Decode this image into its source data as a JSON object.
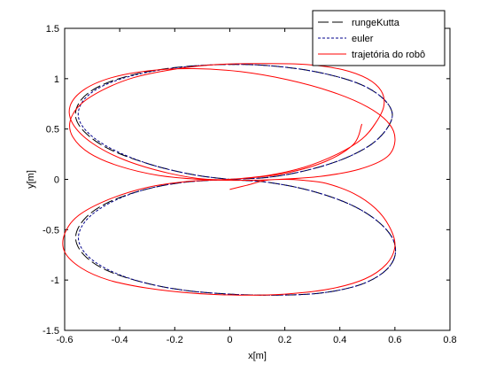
{
  "chart_data": {
    "type": "line",
    "title": "",
    "xlabel": "x[m]",
    "ylabel": "y[m]",
    "xlim": [
      -0.6,
      0.8
    ],
    "ylim": [
      -1.5,
      1.5
    ],
    "xticks": [
      -0.6,
      -0.4,
      -0.2,
      0,
      0.2,
      0.4,
      0.6,
      0.8
    ],
    "xtick_labels": [
      "-0.6",
      "-0.4",
      "-0.2",
      "0",
      "0.2",
      "0.4",
      "0.6",
      "0.8"
    ],
    "yticks": [
      -1.5,
      -1,
      -0.5,
      0,
      0.5,
      1,
      1.5
    ],
    "ytick_labels": [
      "-1.5",
      "-1",
      "-0.5",
      "0",
      "0.5",
      "1",
      "1.5"
    ],
    "grid": false,
    "legend_position": "top-right",
    "series": [
      {
        "name": "rungeKutta",
        "style": "dashed-long",
        "color": "#000000",
        "x": [
          0.0,
          0.14,
          0.28,
          0.41,
          0.51,
          0.57,
          0.59,
          0.55,
          0.46,
          0.31,
          0.14,
          -0.03,
          -0.2,
          -0.35,
          -0.47,
          -0.54,
          -0.56,
          -0.52,
          -0.43,
          -0.29,
          -0.14,
          0.0,
          0.14,
          0.29,
          0.43,
          0.53,
          0.59,
          0.6,
          0.56,
          0.47,
          0.33,
          0.17,
          0.0,
          -0.17,
          -0.32,
          -0.45,
          -0.53,
          -0.56,
          -0.53,
          -0.45,
          -0.32,
          -0.17,
          0.0
        ],
        "y": [
          0.0,
          0.02,
          0.09,
          0.2,
          0.34,
          0.5,
          0.66,
          0.82,
          0.96,
          1.07,
          1.13,
          1.14,
          1.11,
          1.04,
          0.93,
          0.79,
          0.62,
          0.45,
          0.29,
          0.15,
          0.05,
          0.0,
          -0.03,
          -0.11,
          -0.24,
          -0.4,
          -0.58,
          -0.76,
          -0.92,
          -1.05,
          -1.13,
          -1.15,
          -1.14,
          -1.1,
          -1.02,
          -0.9,
          -0.75,
          -0.58,
          -0.4,
          -0.24,
          -0.11,
          -0.03,
          0.0
        ]
      },
      {
        "name": "euler",
        "style": "dotted",
        "color": "#00008b",
        "x": [
          0.0,
          0.14,
          0.28,
          0.41,
          0.51,
          0.57,
          0.59,
          0.55,
          0.46,
          0.31,
          0.14,
          -0.03,
          -0.19,
          -0.34,
          -0.46,
          -0.53,
          -0.55,
          -0.51,
          -0.42,
          -0.29,
          -0.14,
          0.0,
          0.14,
          0.29,
          0.43,
          0.53,
          0.59,
          0.6,
          0.56,
          0.47,
          0.33,
          0.17,
          0.0,
          -0.17,
          -0.32,
          -0.44,
          -0.52,
          -0.55,
          -0.52,
          -0.44,
          -0.32,
          -0.17,
          0.0
        ],
        "y": [
          0.0,
          0.02,
          0.09,
          0.2,
          0.34,
          0.5,
          0.66,
          0.82,
          0.96,
          1.07,
          1.13,
          1.14,
          1.11,
          1.04,
          0.93,
          0.79,
          0.62,
          0.45,
          0.29,
          0.15,
          0.05,
          0.0,
          -0.03,
          -0.11,
          -0.24,
          -0.4,
          -0.58,
          -0.76,
          -0.92,
          -1.05,
          -1.13,
          -1.15,
          -1.14,
          -1.1,
          -1.02,
          -0.9,
          -0.75,
          -0.58,
          -0.4,
          -0.24,
          -0.11,
          -0.03,
          0.0
        ]
      },
      {
        "name": "trajetória do robô",
        "style": "solid",
        "color": "#ff0000",
        "x": [
          0.0,
          0.06,
          0.13,
          0.2,
          0.27,
          0.35,
          0.45,
          0.53,
          0.58,
          0.6,
          0.57,
          0.49,
          0.36,
          0.2,
          0.03,
          -0.14,
          -0.3,
          -0.44,
          -0.54,
          -0.6,
          -0.6,
          -0.55,
          -0.44,
          -0.3,
          -0.15,
          0.0,
          0.14,
          0.27,
          0.39,
          0.48,
          0.53,
          0.56,
          0.55,
          0.5,
          0.41,
          0.28,
          0.12,
          -0.05,
          -0.21,
          -0.35,
          -0.46,
          -0.54,
          -0.58,
          -0.57,
          -0.51,
          -0.4,
          -0.26,
          -0.11,
          0.03,
          0.18,
          0.33,
          0.47,
          0.57,
          0.6,
          0.58,
          0.5,
          0.37,
          0.21,
          0.04,
          -0.13,
          -0.29,
          -0.43,
          -0.53,
          -0.58,
          -0.57,
          -0.5,
          -0.38,
          -0.22,
          -0.08,
          0.05,
          0.2,
          0.35,
          0.45,
          0.48
        ],
        "y": [
          -0.1,
          -0.06,
          -0.01,
          0.0,
          -0.01,
          -0.04,
          -0.14,
          -0.29,
          -0.47,
          -0.66,
          -0.84,
          -0.99,
          -1.09,
          -1.14,
          -1.15,
          -1.13,
          -1.08,
          -1.0,
          -0.88,
          -0.72,
          -0.54,
          -0.36,
          -0.2,
          -0.08,
          -0.02,
          0.0,
          0.04,
          0.12,
          0.25,
          0.4,
          0.56,
          0.73,
          0.88,
          1.0,
          1.09,
          1.14,
          1.15,
          1.14,
          1.09,
          1.01,
          0.89,
          0.75,
          0.58,
          0.42,
          0.26,
          0.13,
          0.04,
          0.0,
          -0.01,
          0.0,
          0.03,
          0.1,
          0.22,
          0.38,
          0.55,
          0.72,
          0.87,
          0.99,
          1.07,
          1.1,
          1.08,
          1.01,
          0.89,
          0.73,
          0.55,
          0.36,
          0.19,
          0.06,
          0.0,
          0.01,
          0.06,
          0.18,
          0.35,
          0.55
        ]
      }
    ]
  }
}
